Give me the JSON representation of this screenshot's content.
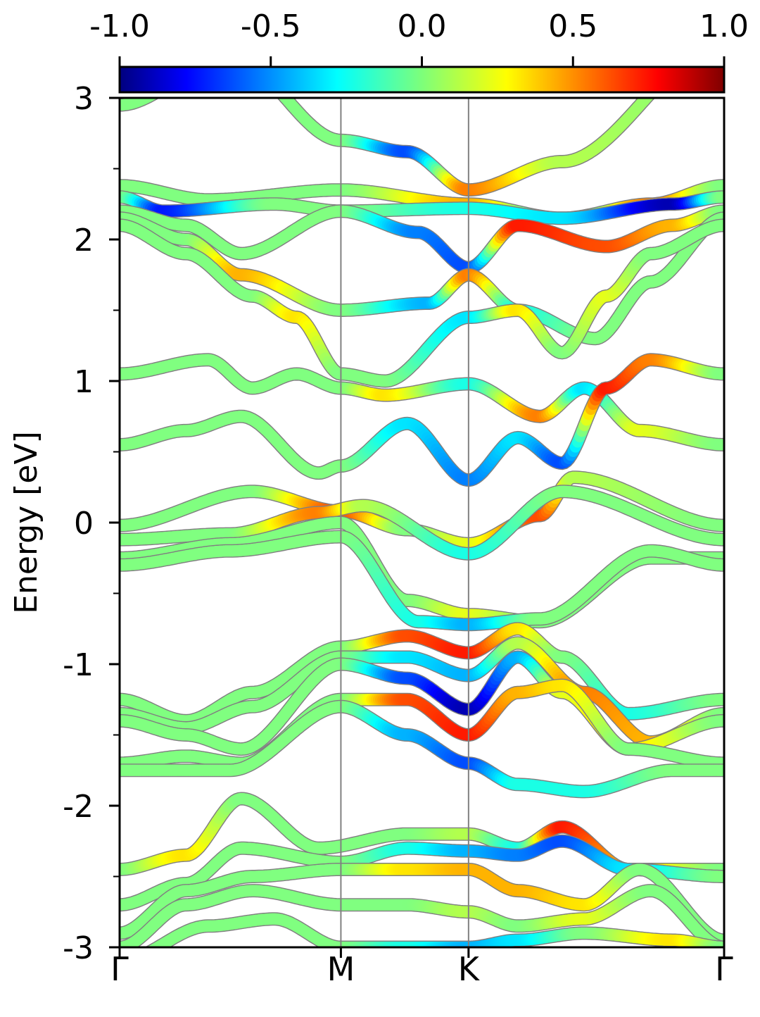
{
  "chart_data": {
    "type": "line",
    "ylabel": "Energy [eV]",
    "xlabel": "",
    "ylim": [
      -3,
      3
    ],
    "y_major_ticks": [
      -3,
      -2,
      -1,
      0,
      1,
      2,
      3
    ],
    "y_minor_ticks": [
      -2.5,
      -1.5,
      -0.5,
      0.5,
      1.5,
      2.5
    ],
    "x_ticks": [
      {
        "label": "Γ",
        "k": 0.0
      },
      {
        "label": "M",
        "k": 1.0
      },
      {
        "label": "K",
        "k": 1.577
      },
      {
        "label": "Γ",
        "k": 2.732
      }
    ],
    "xlim": [
      0,
      2.732
    ],
    "grid": false,
    "colorbar": {
      "colormap": "jet",
      "range": [
        -1.0,
        1.0
      ],
      "ticks": [
        "-1.0",
        "-0.5",
        "0.0",
        "0.5",
        "1.0"
      ],
      "placement": "top"
    },
    "band_color_neutral": "#7ef57a",
    "band_edge_color": "#808080",
    "series": [
      {
        "k": [
          0,
          0.5,
          1.0,
          1.3,
          1.577,
          2.0,
          2.732
        ],
        "energy": [
          2.95,
          3.3,
          2.7,
          2.62,
          2.35,
          2.55,
          3.4
        ],
        "weight": [
          0,
          0,
          0,
          -0.6,
          0.5,
          0.1,
          0
        ]
      },
      {
        "k": [
          0,
          0.4,
          1.0,
          1.577,
          2.0,
          2.4,
          2.732
        ],
        "energy": [
          2.38,
          2.28,
          2.35,
          2.25,
          2.15,
          2.25,
          2.38
        ],
        "weight": [
          0,
          0,
          0,
          0.4,
          -0.3,
          0.5,
          0
        ]
      },
      {
        "k": [
          0,
          0.2,
          0.7,
          1.0,
          1.577,
          2.0,
          2.5,
          2.732
        ],
        "energy": [
          2.3,
          2.2,
          2.25,
          2.2,
          2.22,
          2.15,
          2.25,
          2.3
        ],
        "weight": [
          0,
          -0.7,
          0,
          0,
          -0.2,
          -0.3,
          -0.9,
          0
        ]
      },
      {
        "k": [
          0,
          0.3,
          0.55,
          1.0,
          1.35,
          1.577,
          1.8,
          2.2,
          2.5,
          2.732
        ],
        "energy": [
          2.2,
          2.1,
          1.9,
          2.2,
          2.05,
          1.8,
          2.1,
          1.95,
          2.1,
          2.2
        ],
        "weight": [
          0,
          0,
          0,
          0,
          -0.5,
          -0.6,
          0.7,
          0.6,
          0.4,
          0
        ]
      },
      {
        "k": [
          0,
          0.3,
          0.55,
          1.0,
          1.4,
          1.577,
          1.8,
          2.15,
          2.4,
          2.732
        ],
        "energy": [
          2.15,
          2.0,
          1.75,
          1.5,
          1.55,
          1.75,
          1.5,
          1.3,
          1.7,
          2.15
        ],
        "weight": [
          0,
          0,
          0.4,
          0,
          -0.4,
          0.5,
          -0.2,
          0,
          0,
          0
        ]
      },
      {
        "k": [
          0,
          0.3,
          0.6,
          0.8,
          1.0,
          1.2,
          1.577,
          1.8,
          2.0,
          2.2,
          2.4,
          2.732
        ],
        "energy": [
          2.1,
          1.9,
          1.6,
          1.45,
          1.05,
          1.0,
          1.45,
          1.5,
          1.2,
          1.6,
          1.9,
          2.1
        ],
        "weight": [
          0,
          0,
          0,
          0.3,
          0,
          0,
          -0.3,
          0.3,
          0,
          0.2,
          0,
          0
        ]
      },
      {
        "k": [
          0,
          0.4,
          0.6,
          0.8,
          1.0,
          1.2,
          1.577,
          1.9,
          2.1,
          2.35,
          2.732
        ],
        "energy": [
          1.05,
          1.15,
          0.95,
          1.05,
          0.95,
          0.9,
          0.98,
          0.75,
          0.95,
          0.65,
          0.55
        ],
        "weight": [
          0,
          0,
          0,
          0,
          0,
          0.3,
          -0.2,
          0.5,
          -0.3,
          0.2,
          0
        ]
      },
      {
        "k": [
          0,
          0.3,
          0.55,
          0.9,
          1.0,
          1.3,
          1.577,
          1.8,
          2.0,
          2.2,
          2.4,
          2.732
        ],
        "energy": [
          0.55,
          0.65,
          0.75,
          0.35,
          0.4,
          0.7,
          0.3,
          0.6,
          0.42,
          0.95,
          1.15,
          1.05
        ],
        "weight": [
          0,
          0,
          0,
          0,
          0,
          -0.3,
          -0.5,
          -0.3,
          -0.6,
          0.7,
          0.5,
          0
        ]
      },
      {
        "k": [
          0,
          0.6,
          1.0,
          1.3,
          1.577,
          1.9,
          2.05,
          2.732
        ],
        "energy": [
          -0.02,
          0.22,
          0.08,
          -0.05,
          -0.15,
          0.05,
          0.32,
          -0.02
        ],
        "weight": [
          0,
          0,
          0.6,
          0,
          0.2,
          0.6,
          0.1,
          0
        ]
      },
      {
        "k": [
          0,
          0.5,
          0.9,
          1.1,
          1.577,
          2.0,
          2.732
        ],
        "energy": [
          -0.12,
          -0.08,
          0.07,
          0.12,
          -0.22,
          0.22,
          -0.12
        ],
        "weight": [
          0,
          0,
          0.5,
          0.1,
          -0.2,
          0,
          0
        ]
      },
      {
        "k": [
          0,
          0.5,
          1.0,
          1.3,
          1.577,
          1.9,
          2.4,
          2.732
        ],
        "energy": [
          -0.25,
          -0.15,
          0.0,
          -0.55,
          -0.65,
          -0.7,
          -0.25,
          -0.25
        ],
        "weight": [
          0,
          0,
          0,
          0,
          0.2,
          0,
          0,
          0
        ]
      },
      {
        "k": [
          0,
          0.5,
          1.0,
          1.35,
          1.577,
          1.9,
          2.4,
          2.732
        ],
        "energy": [
          -0.3,
          -0.2,
          -0.1,
          -0.7,
          -0.72,
          -0.68,
          -0.2,
          -0.3
        ],
        "weight": [
          0,
          0,
          0,
          -0.2,
          -0.4,
          0,
          0,
          0
        ]
      },
      {
        "k": [
          0,
          0.3,
          0.6,
          1.0,
          1.3,
          1.577,
          1.8,
          2.0,
          2.3,
          2.732
        ],
        "energy": [
          -1.25,
          -1.4,
          -1.2,
          -0.88,
          -0.8,
          -0.92,
          -0.75,
          -0.95,
          -1.35,
          -1.25
        ],
        "weight": [
          0,
          0,
          0,
          0,
          0.6,
          0.7,
          0.3,
          0,
          -0.2,
          0
        ]
      },
      {
        "k": [
          0,
          0.3,
          0.6,
          1.0,
          1.3,
          1.577,
          1.8,
          2.1,
          2.4,
          2.732
        ],
        "energy": [
          -1.35,
          -1.45,
          -1.3,
          -0.95,
          -0.95,
          -1.08,
          -0.85,
          -1.2,
          -1.55,
          -1.35
        ],
        "weight": [
          0,
          0,
          0,
          0,
          -0.3,
          -0.4,
          0.1,
          0.5,
          0.4,
          0
        ]
      },
      {
        "k": [
          0,
          0.3,
          0.55,
          1.0,
          1.3,
          1.577,
          1.8,
          2.0,
          2.3,
          2.732
        ],
        "energy": [
          -1.4,
          -1.5,
          -1.6,
          -1.0,
          -1.1,
          -1.32,
          -0.95,
          -1.2,
          -1.6,
          -1.4
        ],
        "weight": [
          0,
          0,
          0,
          0,
          -0.6,
          -0.9,
          -0.4,
          0.2,
          0.3,
          0
        ]
      },
      {
        "k": [
          0,
          0.3,
          0.55,
          1.0,
          1.3,
          1.577,
          1.8,
          2.0,
          2.3,
          2.732
        ],
        "energy": [
          -1.7,
          -1.65,
          -1.7,
          -1.25,
          -1.25,
          -1.5,
          -1.2,
          -1.15,
          -1.6,
          -1.7
        ],
        "weight": [
          0,
          0,
          0,
          0,
          0.6,
          0.7,
          0.4,
          0.3,
          0,
          0
        ]
      },
      {
        "k": [
          0,
          0.5,
          1.0,
          1.3,
          1.577,
          1.8,
          2.1,
          2.5,
          2.732
        ],
        "energy": [
          -1.75,
          -1.75,
          -1.3,
          -1.5,
          -1.7,
          -1.85,
          -1.9,
          -1.75,
          -1.75
        ],
        "weight": [
          0,
          0,
          0,
          -0.4,
          -0.6,
          -0.2,
          -0.2,
          0,
          0
        ]
      },
      {
        "k": [
          0,
          0.3,
          0.55,
          0.9,
          1.3,
          1.577,
          1.8,
          2.0,
          2.3,
          2.732
        ],
        "energy": [
          -2.45,
          -2.35,
          -1.95,
          -2.3,
          -2.2,
          -2.2,
          -2.3,
          -2.15,
          -2.45,
          -2.45
        ],
        "weight": [
          0,
          0.3,
          0,
          0,
          0,
          0.1,
          -0.2,
          0.7,
          0.4,
          0
        ]
      },
      {
        "k": [
          0,
          0.3,
          0.55,
          1.0,
          1.3,
          1.577,
          1.8,
          2.0,
          2.3,
          2.732
        ],
        "energy": [
          -2.7,
          -2.55,
          -2.3,
          -2.4,
          -2.3,
          -2.32,
          -2.35,
          -2.25,
          -2.45,
          -2.5
        ],
        "weight": [
          0,
          0,
          0,
          0,
          -0.2,
          -0.4,
          -0.5,
          -0.6,
          -0.3,
          0
        ]
      },
      {
        "k": [
          0,
          0.3,
          0.6,
          1.0,
          1.3,
          1.577,
          1.8,
          2.1,
          2.35,
          2.732
        ],
        "energy": [
          -2.9,
          -2.6,
          -2.5,
          -2.45,
          -2.45,
          -2.45,
          -2.6,
          -2.7,
          -2.45,
          -2.95
        ],
        "weight": [
          0,
          0,
          0,
          0,
          0.3,
          0.4,
          0.4,
          0.3,
          0,
          0
        ]
      },
      {
        "k": [
          0,
          0.3,
          0.6,
          1.0,
          1.3,
          1.577,
          1.8,
          2.1,
          2.4,
          2.732
        ],
        "energy": [
          -3.0,
          -2.7,
          -2.6,
          -2.7,
          -2.7,
          -2.75,
          -2.85,
          -2.8,
          -2.6,
          -3.0
        ],
        "weight": [
          0,
          0,
          0,
          0,
          0,
          0.1,
          0,
          0.2,
          0,
          0
        ]
      },
      {
        "k": [
          0,
          0.4,
          0.7,
          1.0,
          1.3,
          1.577,
          1.8,
          2.1,
          2.5,
          2.732
        ],
        "energy": [
          -3.1,
          -2.85,
          -2.8,
          -3.0,
          -3.0,
          -3.0,
          -2.95,
          -2.9,
          -2.95,
          -3.0
        ],
        "weight": [
          0,
          0,
          0,
          0,
          -0.2,
          -0.4,
          -0.3,
          0,
          0.3,
          0
        ]
      }
    ]
  }
}
